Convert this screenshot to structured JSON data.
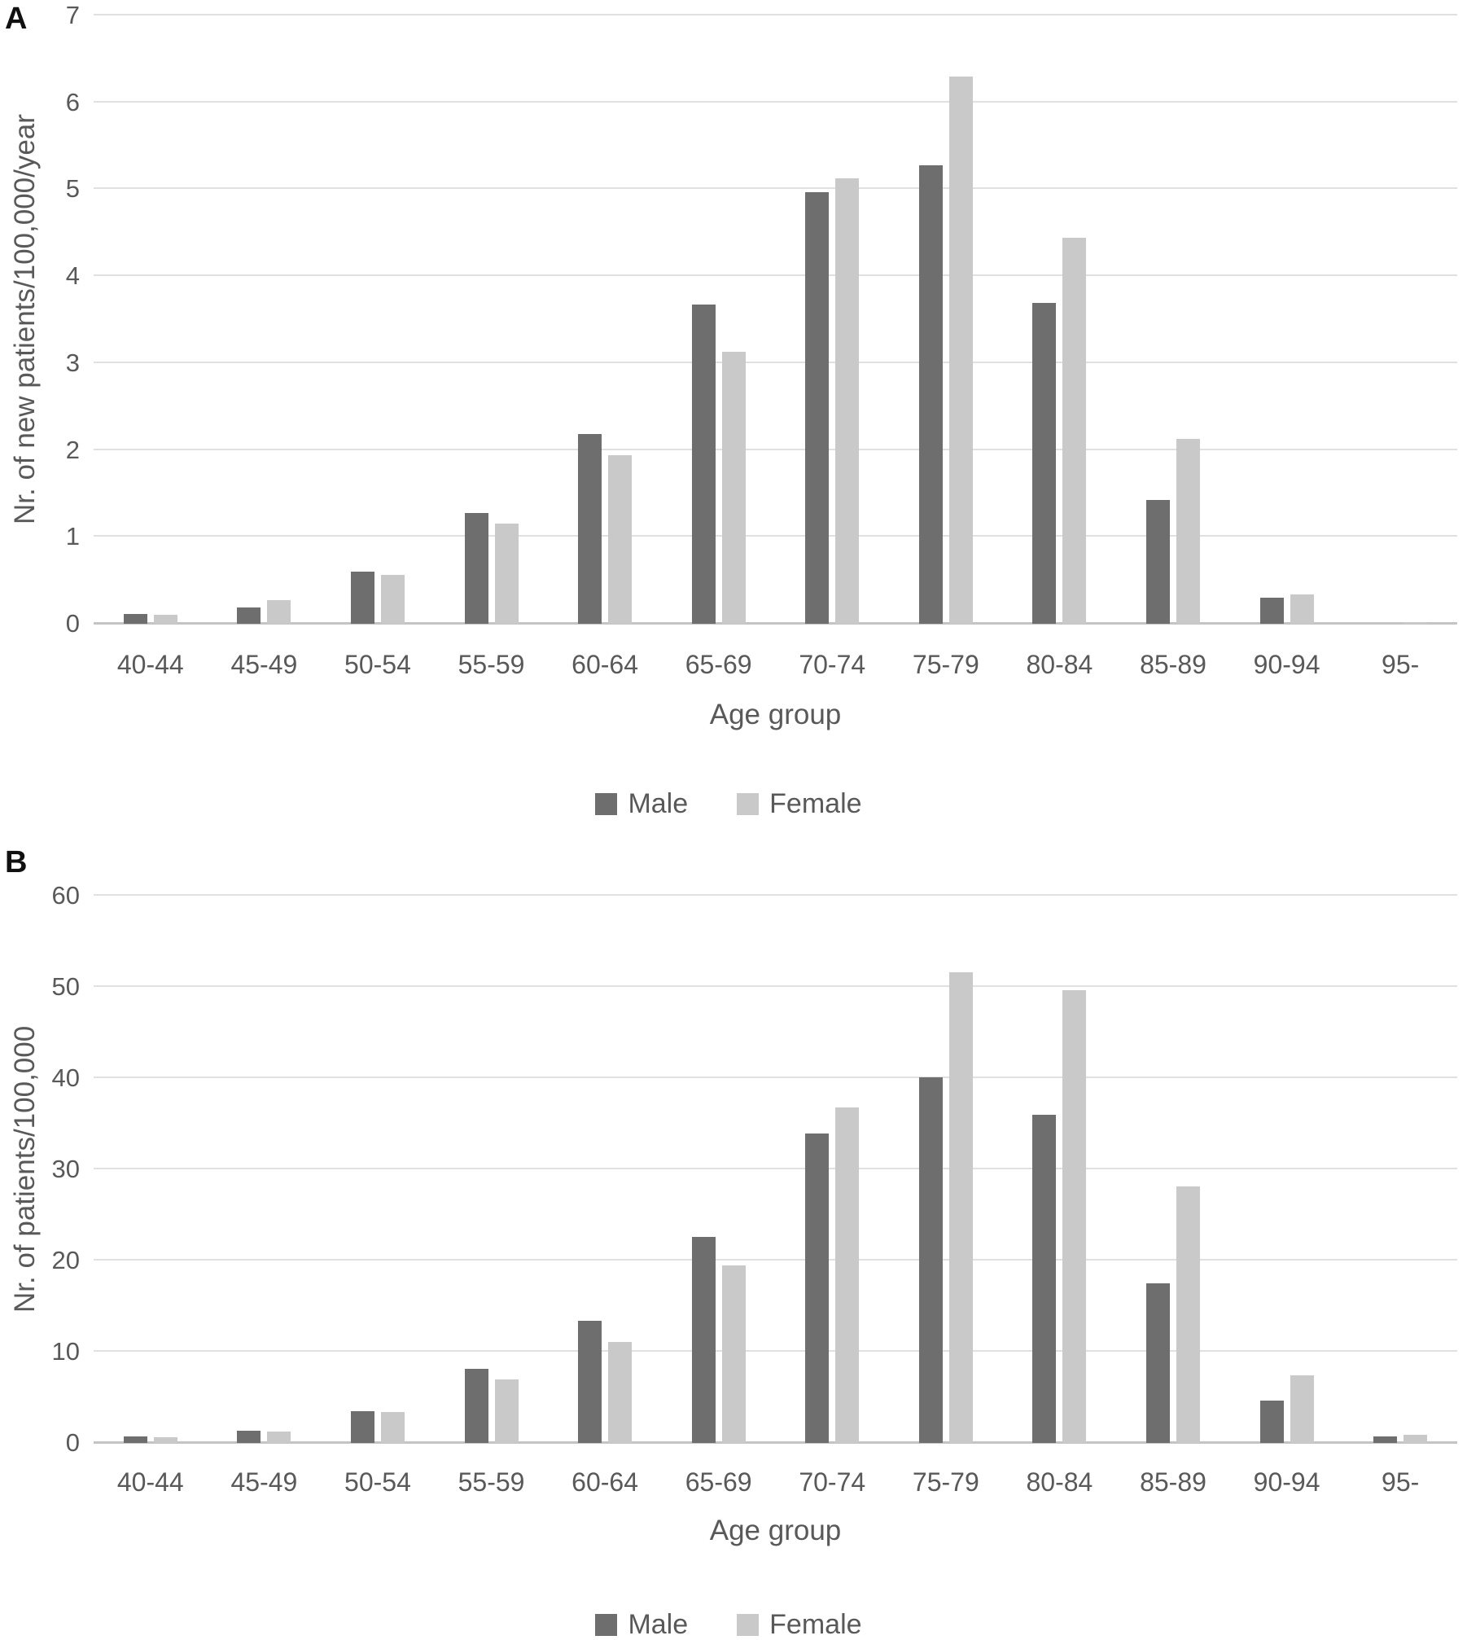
{
  "style": {
    "male_color": "#6e6e6e",
    "female_color": "#c9c9c9",
    "grid_color": "#e0e0e0",
    "axis_line_color": "#c4c4c4",
    "text_color": "#595959",
    "panel_label_color": "#111111"
  },
  "chart_data": [
    {
      "type": "bar",
      "panel": "A",
      "title": "",
      "categories": [
        "40-44",
        "45-49",
        "50-54",
        "55-59",
        "60-64",
        "65-69",
        "70-74",
        "75-79",
        "80-84",
        "85-89",
        "90-94",
        "95-"
      ],
      "series": [
        {
          "name": "Male",
          "values": [
            0.11,
            0.19,
            0.6,
            1.27,
            2.18,
            3.67,
            4.97,
            5.28,
            3.69,
            1.42,
            0.3,
            0.0
          ]
        },
        {
          "name": "Female",
          "values": [
            0.1,
            0.27,
            0.56,
            1.15,
            1.94,
            3.13,
            5.13,
            6.3,
            4.44,
            2.13,
            0.34,
            0.02
          ]
        }
      ],
      "xlabel": "Age group",
      "ylabel": "Nr. of new patients/100,000/year",
      "ylim": [
        0,
        7
      ],
      "ytick_step": 1,
      "grid": true,
      "legend_position": "bottom"
    },
    {
      "type": "bar",
      "panel": "B",
      "title": "",
      "categories": [
        "40-44",
        "45-49",
        "50-54",
        "55-59",
        "60-64",
        "65-69",
        "70-74",
        "75-79",
        "80-84",
        "85-89",
        "90-94",
        "95-"
      ],
      "series": [
        {
          "name": "Male",
          "values": [
            0.7,
            1.3,
            3.5,
            8.1,
            13.4,
            22.6,
            33.9,
            40.1,
            36.0,
            17.5,
            4.6,
            0.7
          ]
        },
        {
          "name": "Female",
          "values": [
            0.65,
            1.25,
            3.4,
            7.0,
            11.1,
            19.5,
            36.8,
            51.6,
            49.6,
            28.1,
            7.4,
            0.9
          ]
        }
      ],
      "xlabel": "Age group",
      "ylabel": "Nr. of patients/100,000",
      "ylim": [
        0,
        60
      ],
      "ytick_step": 10,
      "grid": true,
      "legend_position": "bottom"
    }
  ]
}
